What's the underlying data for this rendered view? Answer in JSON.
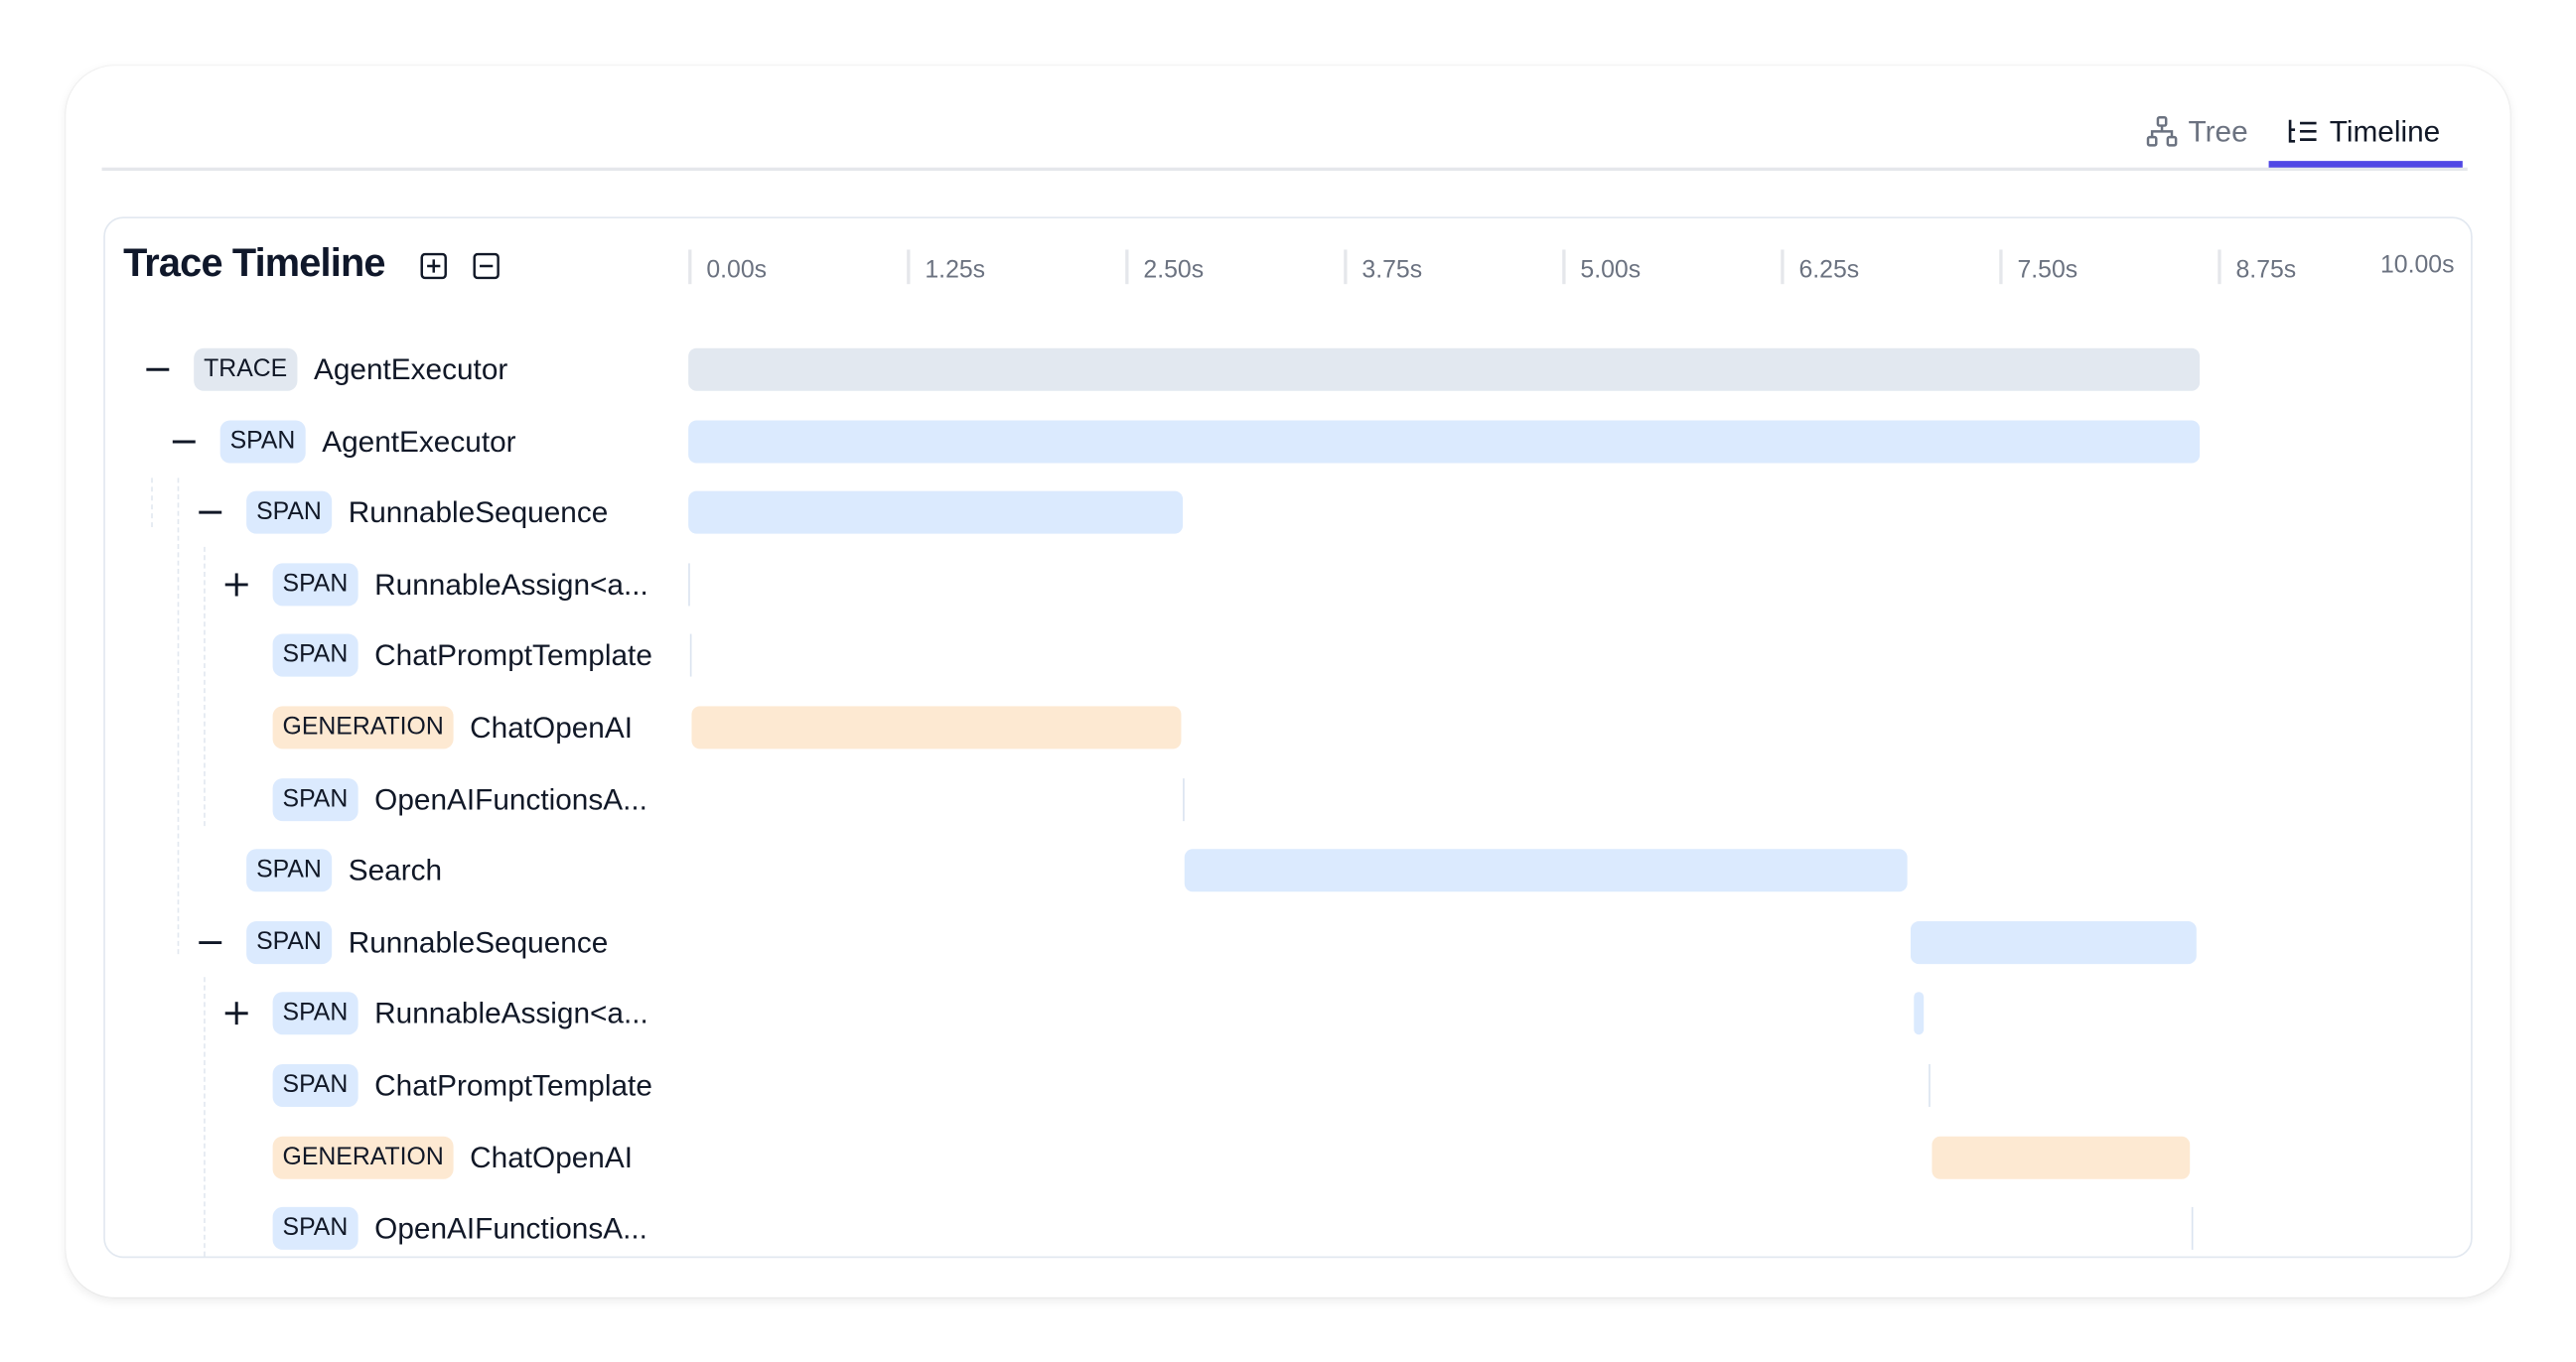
{
  "tabs": [
    {
      "label": "Tree",
      "icon": "tree-icon",
      "active": false
    },
    {
      "label": "Timeline",
      "icon": "timeline-icon",
      "active": true
    }
  ],
  "accent_color": "#4f46e5",
  "timeline": {
    "title": "Trace Timeline",
    "expand_all_icon": "plus-square-icon",
    "collapse_all_icon": "minus-square-icon",
    "axis_ticks": [
      "0.00s",
      "1.25s",
      "2.50s",
      "3.75s",
      "5.00s",
      "6.25s",
      "7.50s",
      "8.75s"
    ],
    "axis_end": "10.00s",
    "axis_max_seconds": 10,
    "type_colors": {
      "TRACE": "#e2e8f0",
      "SPAN": "#dbeafe",
      "GENERATION": "#fde9d2"
    },
    "rows": [
      {
        "level": 0,
        "toggle": "collapse",
        "type": "TRACE",
        "name": "AgentExecutor",
        "start": 0,
        "end": 8.65
      },
      {
        "level": 1,
        "toggle": "collapse",
        "type": "SPAN",
        "name": "AgentExecutor",
        "start": 0,
        "end": 8.65
      },
      {
        "level": 2,
        "toggle": "collapse",
        "type": "SPAN",
        "name": "RunnableSequence",
        "start": 0,
        "end": 2.83
      },
      {
        "level": 3,
        "toggle": "expand",
        "type": "SPAN",
        "name": "RunnableAssign<a...",
        "start": 0,
        "end": 0
      },
      {
        "level": 3,
        "toggle": null,
        "type": "SPAN",
        "name": "ChatPromptTemplate",
        "start": 0.01,
        "end": 0.01
      },
      {
        "level": 3,
        "toggle": null,
        "type": "GENERATION",
        "name": "ChatOpenAI",
        "start": 0.02,
        "end": 2.82
      },
      {
        "level": 3,
        "toggle": null,
        "type": "SPAN",
        "name": "OpenAIFunctionsA...",
        "start": 2.83,
        "end": 2.83
      },
      {
        "level": 2,
        "toggle": null,
        "type": "SPAN",
        "name": "Search",
        "start": 2.84,
        "end": 6.97
      },
      {
        "level": 2,
        "toggle": "collapse",
        "type": "SPAN",
        "name": "RunnableSequence",
        "start": 6.99,
        "end": 8.63
      },
      {
        "level": 3,
        "toggle": "expand",
        "type": "SPAN",
        "name": "RunnableAssign<a...",
        "start": 7.01,
        "end": 7.07
      },
      {
        "level": 3,
        "toggle": null,
        "type": "SPAN",
        "name": "ChatPromptTemplate",
        "start": 7.1,
        "end": 7.1
      },
      {
        "level": 3,
        "toggle": null,
        "type": "GENERATION",
        "name": "ChatOpenAI",
        "start": 7.11,
        "end": 8.59
      },
      {
        "level": 3,
        "toggle": null,
        "type": "SPAN",
        "name": "OpenAIFunctionsA...",
        "start": 8.6,
        "end": 8.6
      }
    ]
  }
}
